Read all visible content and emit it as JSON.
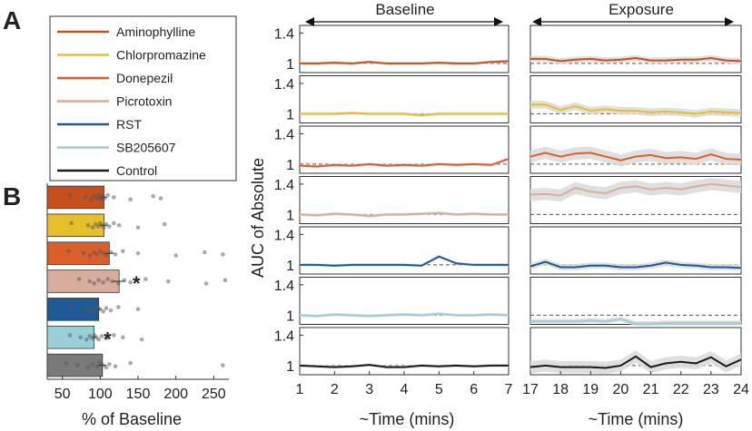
{
  "panel_labels": {
    "a": "A",
    "b": "B"
  },
  "chart_data": [
    {
      "type": "line",
      "panel": "A",
      "ylabel": "AUC of Absolute",
      "xlabel_left": "~Time (mins)",
      "xlabel_right": "~Time (mins)",
      "baseline_label": "Baseline",
      "exposure_label": "Exposure",
      "xticks_left": [
        "1",
        "2",
        "3",
        "4",
        "5",
        "6",
        "7"
      ],
      "xticks_right": [
        "17",
        "18",
        "19",
        "20",
        "21",
        "22",
        "23",
        "24"
      ],
      "xlim_left": [
        1,
        7
      ],
      "xlim_right": [
        17,
        24
      ],
      "ylim": [
        0.88,
        1.5
      ],
      "ytick_labels": [
        "1",
        "1.4"
      ],
      "ytick_values": [
        1,
        1.4
      ],
      "reference_value": 1,
      "legend": [
        "Aminophylline",
        "Chlorpromazine",
        "Donepezil",
        "Picrotoxin",
        "RST",
        "SB205607",
        "Control"
      ],
      "series": [
        {
          "name": "Aminophylline",
          "color": "#c4501f",
          "baseline_x": [
            1,
            1.5,
            2,
            2.5,
            3,
            3.5,
            4,
            4.5,
            5,
            5.5,
            6,
            6.5,
            7
          ],
          "baseline_y": [
            1.0,
            1.0,
            1.01,
            1.0,
            1.02,
            1.0,
            1.0,
            1.0,
            1.01,
            1.0,
            1.0,
            1.02,
            1.03
          ],
          "exposure_x": [
            17,
            17.5,
            18,
            18.5,
            19,
            19.5,
            20,
            20.5,
            21,
            21.5,
            22,
            22.5,
            23,
            23.5,
            24
          ],
          "exposure_y": [
            1.06,
            1.06,
            1.03,
            1.05,
            1.06,
            1.04,
            1.05,
            1.07,
            1.04,
            1.04,
            1.05,
            1.05,
            1.07,
            1.04,
            1.03
          ],
          "exposure_band": 0.04
        },
        {
          "name": "Chlorpromazine",
          "color": "#e7bf2a",
          "baseline_x": [
            1,
            1.5,
            2,
            2.5,
            3,
            3.5,
            4,
            4.5,
            5,
            5.5,
            6,
            6.5,
            7
          ],
          "baseline_y": [
            1.0,
            1.0,
            1.0,
            1.01,
            1.0,
            1.0,
            1.0,
            0.98,
            1.0,
            1.0,
            1.0,
            1.0,
            1.0
          ],
          "exposure_x": [
            17,
            17.5,
            18,
            18.5,
            19,
            19.5,
            20,
            20.5,
            21,
            21.5,
            22,
            22.5,
            23,
            23.5,
            24
          ],
          "exposure_y": [
            1.12,
            1.12,
            1.05,
            1.1,
            1.04,
            1.06,
            1.04,
            1.04,
            1.02,
            1.03,
            1.02,
            1.0,
            1.03,
            1.02,
            1.01
          ],
          "exposure_band": 0.05
        },
        {
          "name": "Donepezil",
          "color": "#db5f2c",
          "baseline_x": [
            1,
            1.5,
            2,
            2.5,
            3,
            3.5,
            4,
            4.5,
            5,
            5.5,
            6,
            6.5,
            7
          ],
          "baseline_y": [
            0.98,
            0.97,
            0.99,
            0.98,
            1.0,
            0.98,
            0.99,
            0.98,
            1.0,
            0.99,
            1.0,
            0.99,
            1.07
          ],
          "exposure_x": [
            17,
            17.5,
            18,
            18.5,
            19,
            19.5,
            20,
            20.5,
            21,
            21.5,
            22,
            22.5,
            23,
            23.5,
            24
          ],
          "exposure_y": [
            1.1,
            1.15,
            1.1,
            1.14,
            1.15,
            1.1,
            1.05,
            1.1,
            1.12,
            1.08,
            1.09,
            1.07,
            1.13,
            1.07,
            1.06
          ],
          "exposure_band": 0.08
        },
        {
          "name": "Picrotoxin",
          "color": "#d8ad9e",
          "baseline_x": [
            1,
            1.5,
            2,
            2.5,
            3,
            3.5,
            4,
            4.5,
            5,
            5.5,
            6,
            6.5,
            7
          ],
          "baseline_y": [
            1.0,
            0.99,
            1.01,
            1.0,
            0.98,
            1.0,
            1.0,
            1.01,
            1.02,
            1.0,
            1.01,
            1.0,
            1.0
          ],
          "exposure_x": [
            17,
            17.5,
            18,
            18.5,
            19,
            19.5,
            20,
            20.5,
            21,
            21.5,
            22,
            22.5,
            23,
            23.5,
            24
          ],
          "exposure_y": [
            1.26,
            1.27,
            1.25,
            1.35,
            1.3,
            1.28,
            1.35,
            1.37,
            1.33,
            1.35,
            1.33,
            1.37,
            1.4,
            1.38,
            1.36
          ],
          "exposure_band": 0.08
        },
        {
          "name": "RST",
          "color": "#1f5a96",
          "baseline_x": [
            1,
            1.5,
            2,
            2.5,
            3,
            3.5,
            4,
            4.5,
            5,
            5.5,
            6,
            6.5,
            7
          ],
          "baseline_y": [
            1.0,
            1.0,
            0.99,
            1.0,
            1.0,
            1.0,
            1.0,
            0.99,
            1.11,
            1.02,
            1.0,
            1.0,
            1.0
          ],
          "exposure_x": [
            17,
            17.5,
            18,
            18.5,
            19,
            19.5,
            20,
            20.5,
            21,
            21.5,
            22,
            22.5,
            23,
            23.5,
            24
          ],
          "exposure_y": [
            0.98,
            1.04,
            0.97,
            0.97,
            0.99,
            0.99,
            0.97,
            0.97,
            0.99,
            1.03,
            1.0,
            0.99,
            0.97,
            0.97,
            0.96
          ],
          "exposure_band": 0.04
        },
        {
          "name": "SB205607",
          "color": "#9bcfd8",
          "baseline_x": [
            1,
            1.5,
            2,
            2.5,
            3,
            3.5,
            4,
            4.5,
            5,
            5.5,
            6,
            6.5,
            7
          ],
          "baseline_y": [
            1.0,
            0.99,
            1.01,
            1.0,
            0.99,
            1.0,
            1.01,
            1.0,
            1.02,
            1.0,
            1.0,
            1.01,
            1.0
          ],
          "exposure_x": [
            17,
            17.5,
            18,
            18.5,
            19,
            19.5,
            20,
            20.5,
            21,
            21.5,
            22,
            22.5,
            23,
            23.5,
            24
          ],
          "exposure_y": [
            0.92,
            0.92,
            0.92,
            0.92,
            0.93,
            0.92,
            0.95,
            0.89,
            0.89,
            0.9,
            0.9,
            0.9,
            0.9,
            0.9,
            0.9
          ],
          "exposure_band": 0.03
        },
        {
          "name": "Control",
          "color": "#1a1a1a",
          "baseline_x": [
            1,
            1.5,
            2,
            2.5,
            3,
            3.5,
            4,
            4.5,
            5,
            5.5,
            6,
            6.5,
            7
          ],
          "baseline_y": [
            1.0,
            0.99,
            0.98,
            0.99,
            1.01,
            0.98,
            0.98,
            1.0,
            0.99,
            1.0,
            0.99,
            1.0,
            1.0
          ],
          "exposure_x": [
            17,
            17.5,
            18,
            18.5,
            19,
            19.5,
            20,
            20.5,
            21,
            21.5,
            22,
            22.5,
            23,
            23.5,
            24
          ],
          "exposure_y": [
            0.98,
            1.0,
            0.98,
            0.98,
            0.98,
            0.97,
            1.0,
            1.12,
            0.98,
            1.03,
            1.05,
            1.03,
            1.11,
            0.99,
            1.08
          ],
          "exposure_band": 0.08
        }
      ]
    },
    {
      "type": "bar",
      "panel": "B",
      "orientation": "horizontal",
      "xlabel": "% of Baseline",
      "xticks": [
        "50",
        "100",
        "150",
        "200",
        "250"
      ],
      "xtick_values": [
        50,
        100,
        150,
        200,
        250
      ],
      "xlim": [
        30,
        270
      ],
      "categories": [
        "Aminophylline",
        "Chlorpromazine",
        "Donepezil",
        "Picrotoxin",
        "RST",
        "SB205607",
        "Control"
      ],
      "values": [
        105,
        105,
        112,
        125,
        98,
        92,
        103
      ],
      "errors": [
        4,
        5,
        6,
        8,
        3,
        3,
        5
      ],
      "colors": [
        "#c4501f",
        "#e7bf2a",
        "#db5f2c",
        "#d8ad9e",
        "#1f5a96",
        "#9bcfd8",
        "#7a7a7a"
      ],
      "significance": [
        "",
        "",
        "",
        "*",
        "",
        "*",
        ""
      ],
      "points": [
        [
          60,
          80,
          88,
          92,
          96,
          98,
          100,
          102,
          104,
          106,
          110,
          118,
          140,
          170,
          180
        ],
        [
          62,
          84,
          90,
          94,
          97,
          100,
          102,
          105,
          108,
          112,
          118,
          125,
          150,
          185
        ],
        [
          58,
          78,
          86,
          92,
          96,
          100,
          104,
          108,
          114,
          120,
          130,
          150,
          200,
          238,
          262
        ],
        [
          72,
          86,
          92,
          98,
          104,
          110,
          116,
          124,
          132,
          140,
          160,
          190,
          240,
          265
        ],
        [
          62,
          80,
          86,
          90,
          94,
          97,
          100,
          104,
          108,
          114,
          124,
          150
        ],
        [
          60,
          74,
          82,
          86,
          90,
          92,
          95,
          98,
          102,
          108,
          118,
          130,
          155
        ],
        [
          55,
          70,
          84,
          90,
          96,
          100,
          104,
          108,
          112,
          120,
          140,
          262
        ]
      ]
    }
  ]
}
